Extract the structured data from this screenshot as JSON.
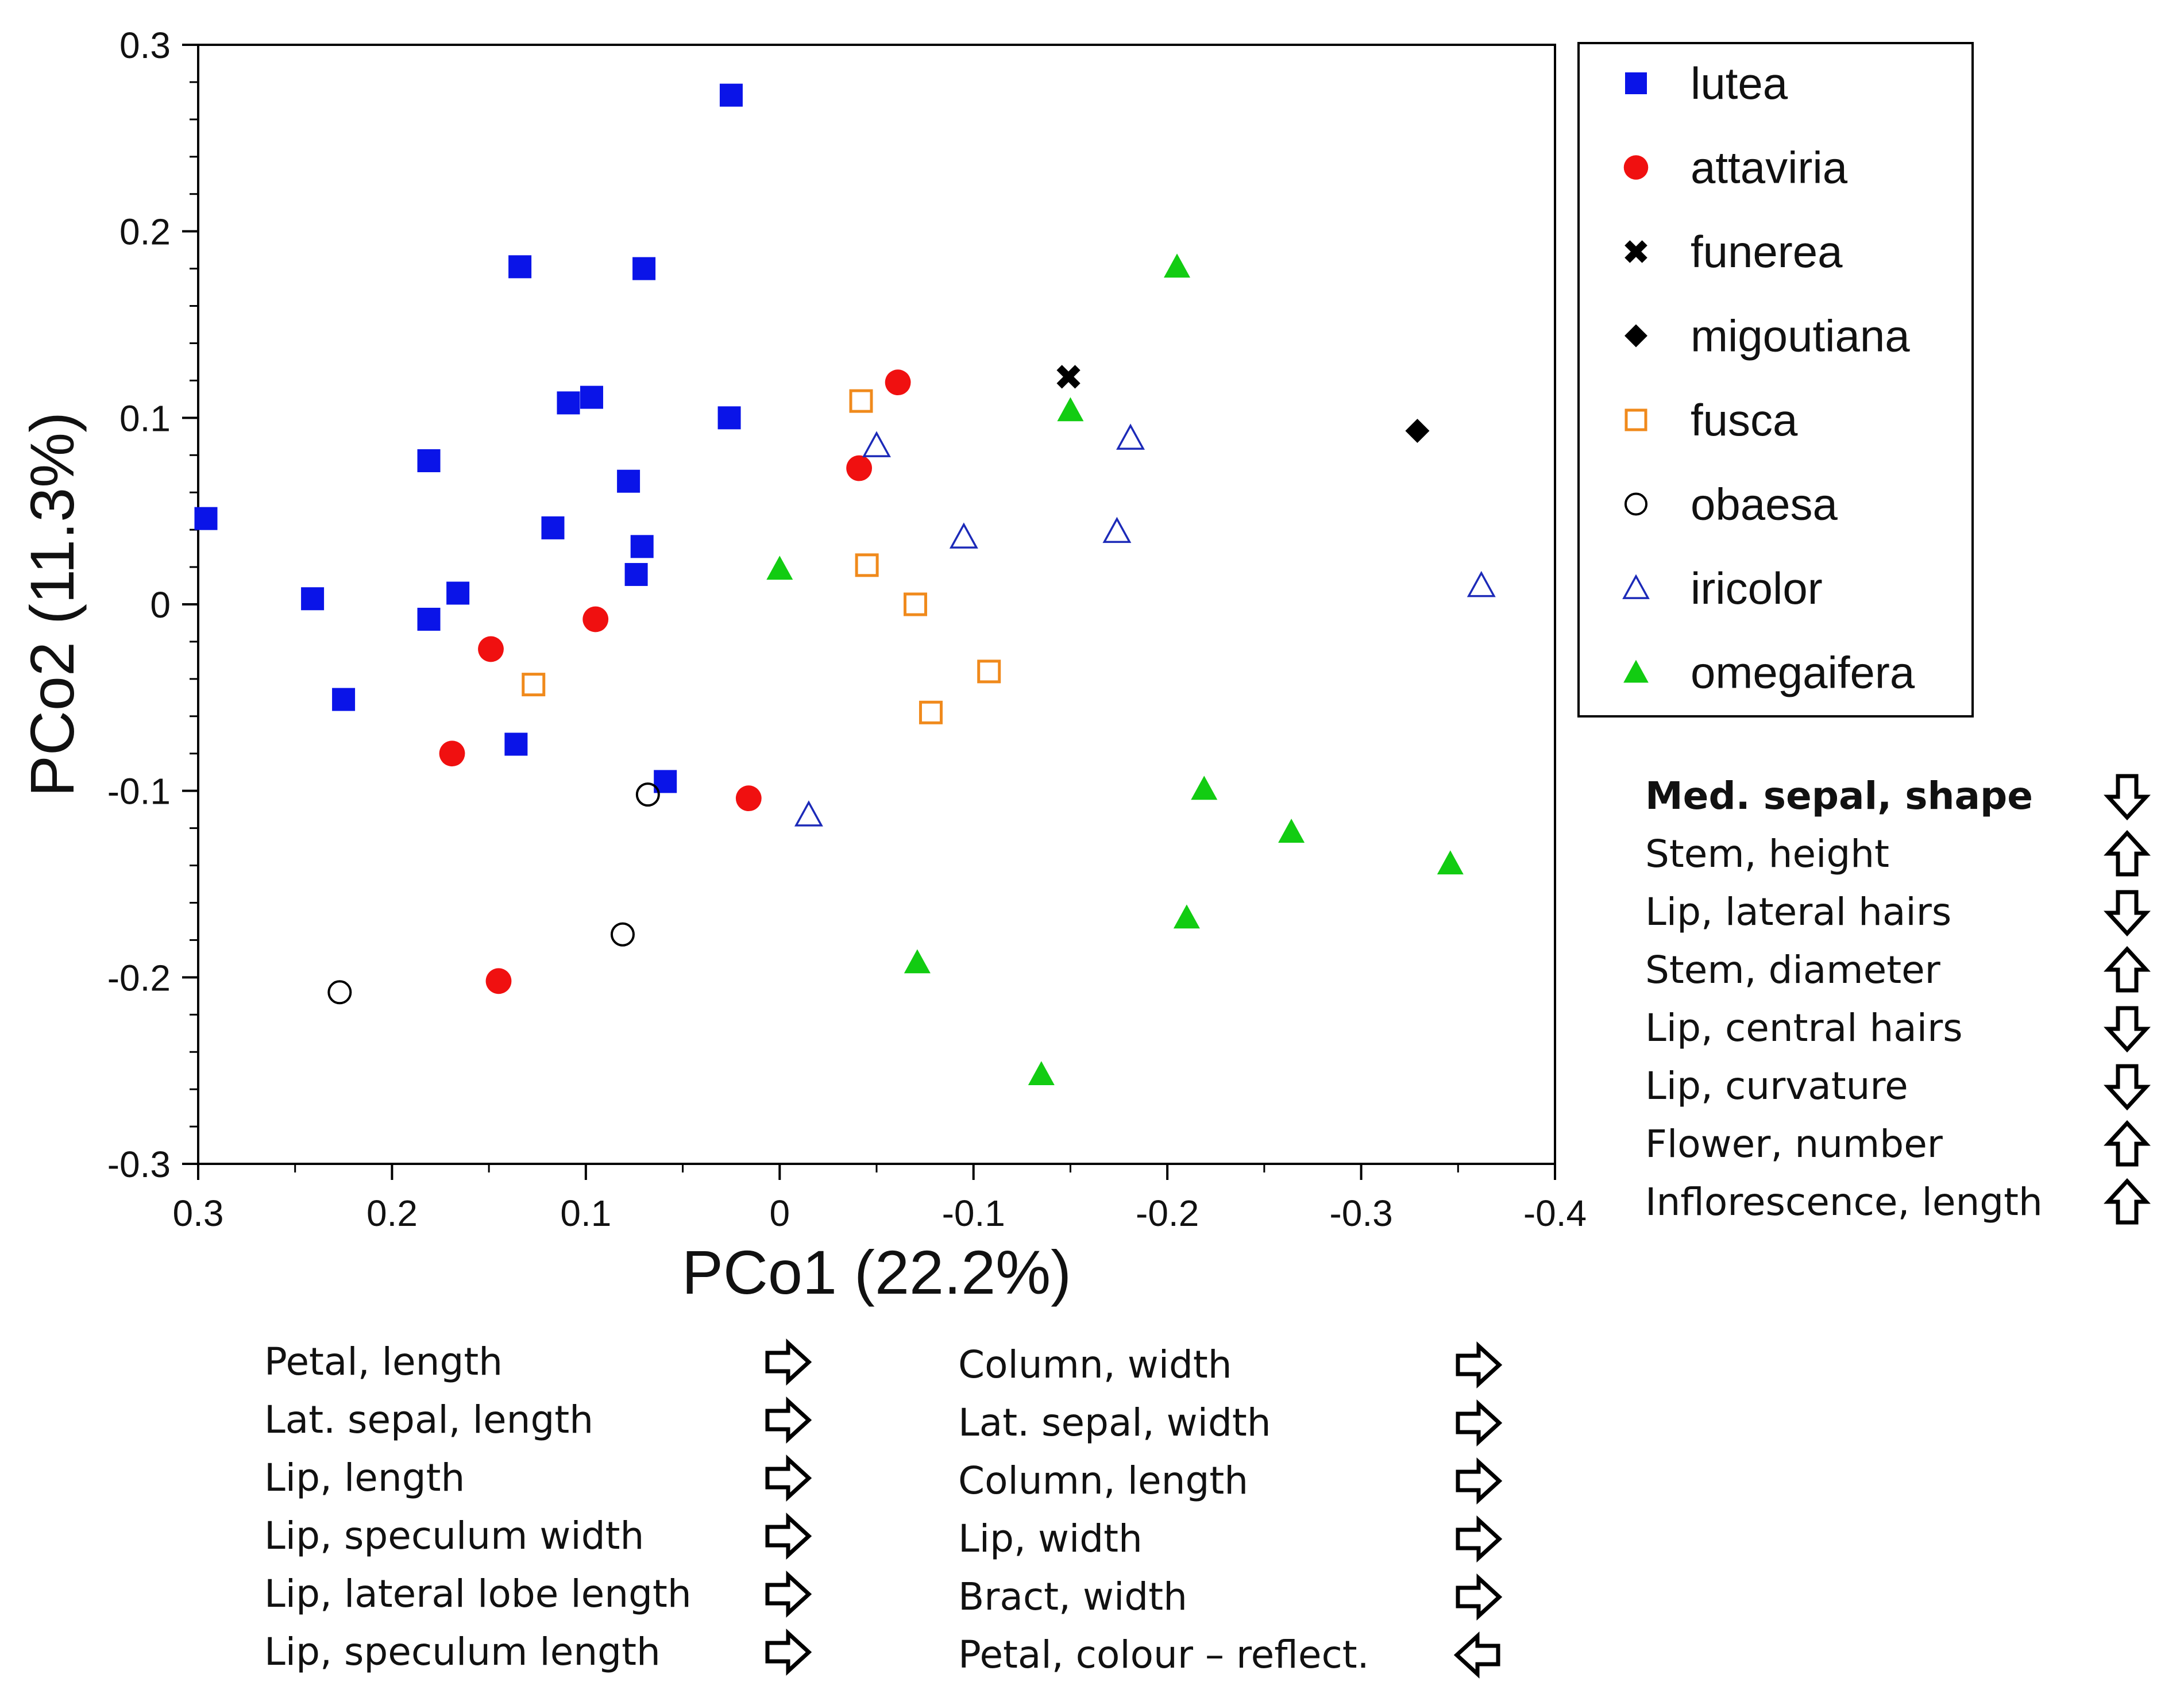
{
  "chart_data": {
    "type": "scatter",
    "xlabel": "PCo1 (22.2%)",
    "ylabel": "PCo2 (11.3%)",
    "xlim": [
      0.3,
      -0.4
    ],
    "ylim": [
      -0.3,
      0.3
    ],
    "xticks": [
      0.3,
      0.2,
      0.1,
      0,
      -0.1,
      -0.2,
      -0.3,
      -0.4
    ],
    "xtick_labels": [
      "0.3",
      "0.2",
      "0.1",
      "0",
      "-0.1",
      "-0.2",
      "-0.3",
      "-0.4"
    ],
    "yticks": [
      0.3,
      0.2,
      0.1,
      0,
      -0.1,
      -0.2,
      -0.3
    ],
    "ytick_labels": [
      "0.3",
      "0.2",
      "0.1",
      "0",
      "-0.1",
      "-0.2",
      "-0.3"
    ],
    "grid": false,
    "legend_position": "top-right, outside plot",
    "series": [
      {
        "name": "lutea",
        "marker": "filled-square",
        "color": "#0a14e8",
        "points": [
          [
            0.025,
            0.273
          ],
          [
            0.134,
            0.181
          ],
          [
            0.07,
            0.18
          ],
          [
            0.109,
            0.108
          ],
          [
            0.097,
            0.111
          ],
          [
            0.026,
            0.1
          ],
          [
            0.181,
            0.077
          ],
          [
            0.078,
            0.066
          ],
          [
            0.296,
            0.046
          ],
          [
            0.117,
            0.041
          ],
          [
            0.071,
            0.031
          ],
          [
            0.074,
            0.016
          ],
          [
            0.241,
            0.003
          ],
          [
            0.166,
            0.006
          ],
          [
            0.181,
            -0.008
          ],
          [
            0.225,
            -0.051
          ],
          [
            0.136,
            -0.075
          ],
          [
            0.059,
            -0.095
          ]
        ]
      },
      {
        "name": "attaviria",
        "marker": "filled-circle",
        "color": "#f01010",
        "points": [
          [
            -0.061,
            0.119
          ],
          [
            -0.041,
            0.073
          ],
          [
            0.095,
            -0.008
          ],
          [
            0.149,
            -0.024
          ],
          [
            0.169,
            -0.08
          ],
          [
            0.016,
            -0.104
          ],
          [
            0.145,
            -0.202
          ]
        ]
      },
      {
        "name": "funerea",
        "marker": "x-cross",
        "color": "#000000",
        "points": [
          [
            -0.149,
            0.122
          ]
        ]
      },
      {
        "name": "migoutiana",
        "marker": "filled-diamond",
        "color": "#000000",
        "points": [
          [
            -0.329,
            0.093
          ]
        ]
      },
      {
        "name": "fusca",
        "marker": "open-square",
        "color": "#f08a1c",
        "points": [
          [
            -0.042,
            0.109
          ],
          [
            -0.045,
            0.021
          ],
          [
            -0.07,
            0.0
          ],
          [
            -0.108,
            -0.036
          ],
          [
            -0.078,
            -0.058
          ],
          [
            0.127,
            -0.043
          ]
        ]
      },
      {
        "name": "obaesa",
        "marker": "open-circle",
        "color": "#000000",
        "points": [
          [
            0.068,
            -0.102
          ],
          [
            0.081,
            -0.177
          ],
          [
            0.227,
            -0.208
          ]
        ]
      },
      {
        "name": "iricolor",
        "marker": "open-triangle",
        "color": "#1c2ab8",
        "points": [
          [
            -0.05,
            0.085
          ],
          [
            -0.095,
            0.036
          ],
          [
            -0.181,
            0.089
          ],
          [
            -0.174,
            0.039
          ],
          [
            -0.362,
            0.01
          ],
          [
            -0.015,
            -0.113
          ]
        ]
      },
      {
        "name": "omegaifera",
        "marker": "filled-triangle",
        "color": "#12cc12",
        "points": [
          [
            -0.205,
            0.181
          ],
          [
            -0.15,
            0.104
          ],
          [
            0.0,
            0.019
          ],
          [
            -0.219,
            -0.099
          ],
          [
            -0.264,
            -0.122
          ],
          [
            -0.346,
            -0.139
          ],
          [
            -0.21,
            -0.168
          ],
          [
            -0.071,
            -0.192
          ],
          [
            -0.135,
            -0.252
          ]
        ]
      }
    ]
  },
  "pco2_variables": [
    {
      "label": "Med. sepal, shape",
      "bold": true,
      "direction": "down"
    },
    {
      "label": "Stem, height",
      "bold": false,
      "direction": "up"
    },
    {
      "label": "Lip, lateral hairs",
      "bold": false,
      "direction": "down"
    },
    {
      "label": "Stem, diameter",
      "bold": false,
      "direction": "up"
    },
    {
      "label": "Lip, central hairs",
      "bold": false,
      "direction": "down"
    },
    {
      "label": "Lip, curvature",
      "bold": false,
      "direction": "down"
    },
    {
      "label": "Flower, number",
      "bold": false,
      "direction": "up"
    },
    {
      "label": "Inflorescence, length",
      "bold": false,
      "direction": "up"
    }
  ],
  "pco1_variables_left": [
    {
      "label": "Petal, length",
      "direction": "right"
    },
    {
      "label": "Lat. sepal, length",
      "direction": "right"
    },
    {
      "label": "Lip, length",
      "direction": "right"
    },
    {
      "label": "Lip, speculum width",
      "direction": "right"
    },
    {
      "label": "Lip, lateral lobe length",
      "direction": "right"
    },
    {
      "label": "Lip, speculum length",
      "direction": "right"
    }
  ],
  "pco1_variables_right": [
    {
      "label": "Column, width",
      "direction": "right"
    },
    {
      "label": "Lat. sepal, width",
      "direction": "right"
    },
    {
      "label": "Column, length",
      "direction": "right"
    },
    {
      "label": "Lip, width",
      "direction": "right"
    },
    {
      "label": "Bract, width",
      "direction": "right"
    },
    {
      "label": "Petal, colour – reflect.",
      "direction": "left"
    }
  ]
}
